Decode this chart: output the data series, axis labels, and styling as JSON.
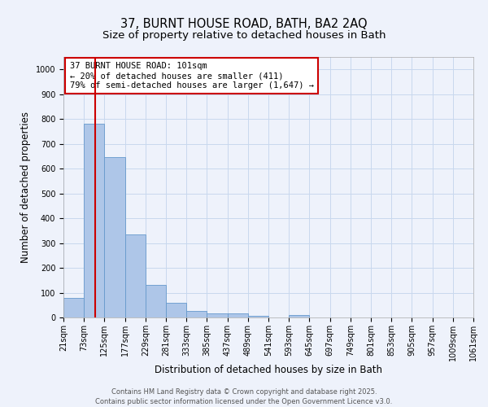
{
  "title_line1": "37, BURNT HOUSE ROAD, BATH, BA2 2AQ",
  "title_line2": "Size of property relative to detached houses in Bath",
  "xlabel": "Distribution of detached houses by size in Bath",
  "ylabel": "Number of detached properties",
  "bin_labels": [
    "21sqm",
    "73sqm",
    "125sqm",
    "177sqm",
    "229sqm",
    "281sqm",
    "333sqm",
    "385sqm",
    "437sqm",
    "489sqm",
    "541sqm",
    "593sqm",
    "645sqm",
    "697sqm",
    "749sqm",
    "801sqm",
    "853sqm",
    "905sqm",
    "957sqm",
    "1009sqm",
    "1061sqm"
  ],
  "bin_edges": [
    21,
    73,
    125,
    177,
    229,
    281,
    333,
    385,
    437,
    489,
    541,
    593,
    645,
    697,
    749,
    801,
    853,
    905,
    957,
    1009,
    1061
  ],
  "bar_heights": [
    80,
    780,
    645,
    335,
    130,
    60,
    25,
    18,
    15,
    8,
    0,
    10,
    0,
    0,
    0,
    0,
    0,
    0,
    0,
    0
  ],
  "bar_color": "#aec6e8",
  "bar_edge_color": "#6699cc",
  "red_line_x": 101,
  "ylim": [
    0,
    1050
  ],
  "yticks": [
    0,
    100,
    200,
    300,
    400,
    500,
    600,
    700,
    800,
    900,
    1000
  ],
  "annotation_box_text": "37 BURNT HOUSE ROAD: 101sqm\n← 20% of detached houses are smaller (411)\n79% of semi-detached houses are larger (1,647) →",
  "annotation_box_color": "#ffffff",
  "annotation_box_edge_color": "#cc0000",
  "footer_line1": "Contains HM Land Registry data © Crown copyright and database right 2025.",
  "footer_line2": "Contains public sector information licensed under the Open Government Licence v3.0.",
  "background_color": "#eef2fb",
  "grid_color": "#c8d8ee",
  "title_fontsize": 10.5,
  "subtitle_fontsize": 9.5,
  "axis_label_fontsize": 8.5,
  "tick_fontsize": 7,
  "annot_fontsize": 7.5,
  "footer_fontsize": 6
}
